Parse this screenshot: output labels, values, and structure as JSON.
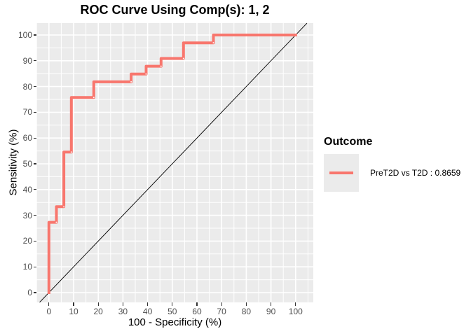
{
  "figure": {
    "title": "ROC Curve Using Comp(s): 1, 2",
    "background": "#FFFFFF"
  },
  "axes": {
    "x": {
      "title": "100 - Specificity (%)",
      "ticks": [
        0,
        10,
        20,
        30,
        40,
        50,
        60,
        70,
        80,
        90,
        100
      ],
      "range": [
        0,
        100
      ]
    },
    "y": {
      "title": "Sensitivity (%)",
      "ticks": [
        0,
        10,
        20,
        30,
        40,
        50,
        60,
        70,
        80,
        90,
        100
      ],
      "range": [
        0,
        100
      ]
    }
  },
  "legend": {
    "title": "Outcome",
    "items": [
      {
        "label": "PreT2D vs T2D : 0.8659",
        "color": "#F8766D"
      }
    ]
  },
  "style": {
    "panel_bg": "#EBEBEB",
    "grid_color": "#FFFFFF",
    "tick_color": "#333333",
    "tick_label_color": "#4D4D4D",
    "curve_color": "#F8766D",
    "reference_line_color": "#000000"
  },
  "chart_data": {
    "type": "line",
    "subtype": "roc_step_curve",
    "title": "ROC Curve Using Comp(s): 1, 2",
    "xlabel": "100 - Specificity (%)",
    "ylabel": "Sensitivity (%)",
    "xlim": [
      0,
      100
    ],
    "ylim": [
      0,
      100
    ],
    "grid": true,
    "grid_major_step": 10,
    "grid_minor_step": 5,
    "legend_position": "right",
    "series": [
      {
        "name": "PreT2D vs T2D",
        "auc": 0.8659,
        "color": "#F8766D",
        "roc_points": [
          [
            0,
            0
          ],
          [
            0,
            27.27
          ],
          [
            3.03,
            33.33
          ],
          [
            6.06,
            54.55
          ],
          [
            9.09,
            75.76
          ],
          [
            18.18,
            81.82
          ],
          [
            33.33,
            84.85
          ],
          [
            39.39,
            87.88
          ],
          [
            45.45,
            90.91
          ],
          [
            54.55,
            96.97
          ],
          [
            66.67,
            100
          ],
          [
            100,
            100
          ]
        ],
        "step_vertices": [
          [
            0,
            0
          ],
          [
            0,
            27.27
          ],
          [
            3.03,
            27.27
          ],
          [
            3.03,
            33.33
          ],
          [
            6.06,
            33.33
          ],
          [
            6.06,
            54.55
          ],
          [
            9.09,
            54.55
          ],
          [
            9.09,
            75.76
          ],
          [
            18.18,
            75.76
          ],
          [
            18.18,
            81.82
          ],
          [
            33.33,
            81.82
          ],
          [
            33.33,
            84.85
          ],
          [
            39.39,
            84.85
          ],
          [
            39.39,
            87.88
          ],
          [
            45.45,
            87.88
          ],
          [
            45.45,
            90.91
          ],
          [
            54.55,
            90.91
          ],
          [
            54.55,
            96.97
          ],
          [
            66.67,
            96.97
          ],
          [
            66.67,
            100
          ],
          [
            100,
            100
          ]
        ]
      }
    ],
    "reference_line": {
      "type": "diagonal_y_equals_x",
      "color": "#000000"
    }
  }
}
